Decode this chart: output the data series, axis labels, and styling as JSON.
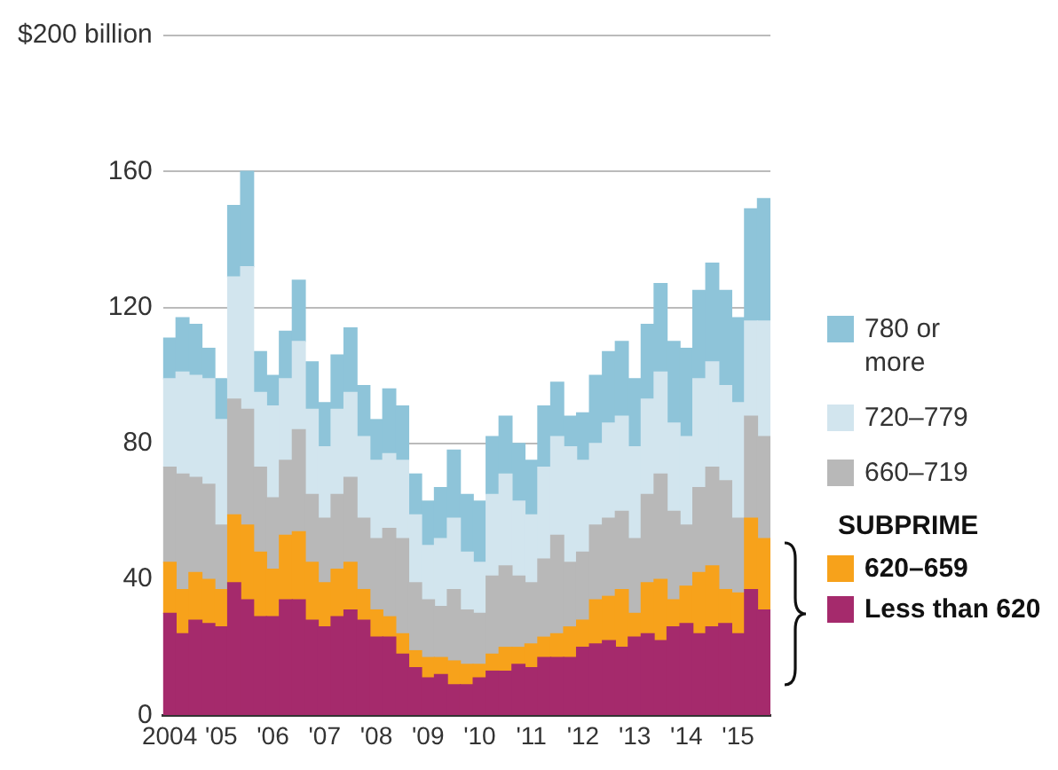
{
  "chart_data": {
    "type": "bar",
    "stacked": true,
    "categories": [
      "2004",
      null,
      null,
      null,
      "'05",
      null,
      null,
      null,
      "'06",
      null,
      null,
      null,
      "'07",
      null,
      null,
      null,
      "'08",
      null,
      null,
      null,
      "'09",
      null,
      null,
      null,
      "'10",
      null,
      null,
      null,
      "'11",
      null,
      null,
      null,
      "'12",
      null,
      null,
      null,
      "'13",
      null,
      null,
      null,
      "'14",
      null,
      null,
      null,
      "'15",
      null,
      null
    ],
    "series": [
      {
        "name": "Less than 620",
        "color": "#a52a6c",
        "values": [
          30,
          24,
          28,
          27,
          26,
          39,
          34,
          29,
          29,
          34,
          34,
          28,
          26,
          29,
          31,
          28,
          23,
          23,
          18,
          14,
          11,
          12,
          9,
          9,
          11,
          13,
          13,
          15,
          14,
          17,
          17,
          17,
          20,
          21,
          22,
          20,
          23,
          24,
          22,
          26,
          27,
          24,
          26,
          27,
          24,
          37,
          31
        ]
      },
      {
        "name": "620–659",
        "color": "#f7a21b",
        "values": [
          15,
          13,
          14,
          13,
          11,
          20,
          22,
          19,
          14,
          19,
          20,
          17,
          13,
          14,
          14,
          9,
          8,
          6,
          6,
          5,
          6,
          5,
          7,
          6,
          4,
          5,
          7,
          5,
          7,
          6,
          7,
          9,
          8,
          13,
          13,
          17,
          7,
          15,
          18,
          8,
          11,
          18,
          18,
          10,
          12,
          21,
          21
        ]
      },
      {
        "name": "660–719",
        "color": "#b8b8b8",
        "values": [
          28,
          34,
          28,
          28,
          19,
          34,
          34,
          25,
          21,
          22,
          30,
          20,
          19,
          22,
          25,
          21,
          21,
          26,
          28,
          20,
          17,
          15,
          21,
          16,
          15,
          23,
          24,
          21,
          18,
          23,
          29,
          19,
          20,
          22,
          23,
          23,
          22,
          26,
          31,
          26,
          18,
          25,
          29,
          32,
          22,
          30,
          30
        ]
      },
      {
        "name": "720–779",
        "color": "#d2e5ee",
        "values": [
          26,
          30,
          30,
          31,
          31,
          36,
          42,
          22,
          27,
          24,
          26,
          25,
          21,
          25,
          25,
          24,
          23,
          22,
          23,
          20,
          16,
          20,
          21,
          17,
          15,
          24,
          27,
          22,
          20,
          27,
          29,
          34,
          27,
          24,
          28,
          28,
          27,
          28,
          30,
          26,
          26,
          32,
          31,
          28,
          34,
          28,
          34
        ]
      },
      {
        "name": "780 or more",
        "color": "#8ec4d9",
        "values": [
          12,
          16,
          15,
          9,
          12,
          21,
          28,
          12,
          9,
          14,
          18,
          14,
          13,
          16,
          19,
          15,
          12,
          19,
          16,
          12,
          13,
          15,
          20,
          17,
          18,
          17,
          17,
          17,
          16,
          18,
          16,
          9,
          14,
          20,
          21,
          22,
          20,
          22,
          26,
          24,
          26,
          26,
          29,
          28,
          25,
          33,
          36
        ]
      }
    ],
    "ylim": [
      0,
      200
    ],
    "yticks": [
      0,
      40,
      80,
      120,
      160,
      {
        "value": 200,
        "label": "$200 billion"
      }
    ],
    "grid": "y",
    "legend": "right",
    "annotations": [
      "SUBPRIME"
    ]
  }
}
